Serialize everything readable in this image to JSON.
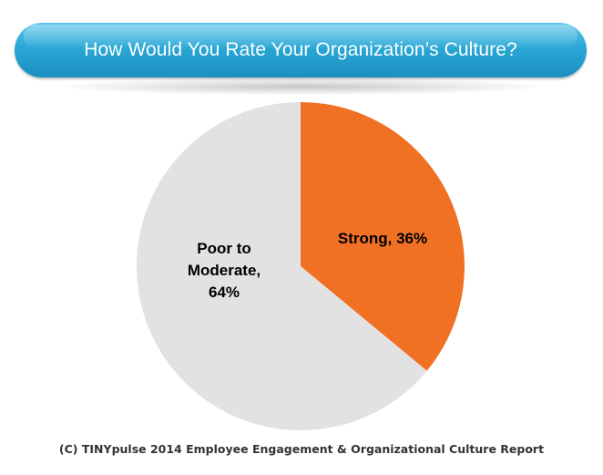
{
  "colors": {
    "strong": "#f07124",
    "poor_to_moderate": "#e2e2e2",
    "label_text": "#000000"
  },
  "chart_data": {
    "type": "pie",
    "title": "How Would You Rate Your Organization’s Culture?",
    "slices": [
      {
        "label": "Strong, 36%",
        "lines": [
          "Strong, 36%"
        ],
        "value": 36,
        "color": "#f07124"
      },
      {
        "label": "Poor to Moderate, 64%",
        "lines": [
          "Poor to",
          "Moderate,",
          "64%"
        ],
        "value": 64,
        "color": "#e2e2e2"
      }
    ],
    "start_angle_deg": 0,
    "direction": "clockwise"
  },
  "footer": "(C) TINYpulse 2014 Employee Engagement & Organizational Culture Report"
}
